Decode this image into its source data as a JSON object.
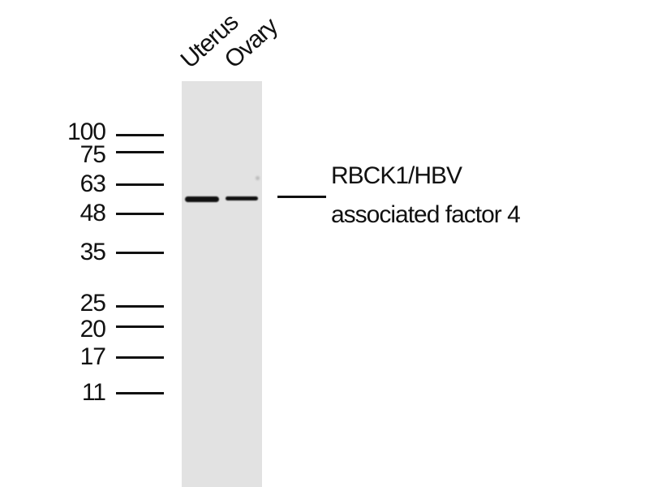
{
  "lanes": [
    {
      "label": "Uterus"
    },
    {
      "label": "Ovary"
    }
  ],
  "markers": [
    {
      "kda": "100"
    },
    {
      "kda": "75"
    },
    {
      "kda": "63"
    },
    {
      "kda": "48"
    },
    {
      "kda": "35"
    },
    {
      "kda": "25"
    },
    {
      "kda": "20"
    },
    {
      "kda": "17"
    },
    {
      "kda": "11"
    }
  ],
  "target": {
    "line1": "RBCK1/HBV",
    "line2": "associated factor 4"
  },
  "colors": {
    "membrane": "#e2e2e2",
    "band": "#111111"
  }
}
